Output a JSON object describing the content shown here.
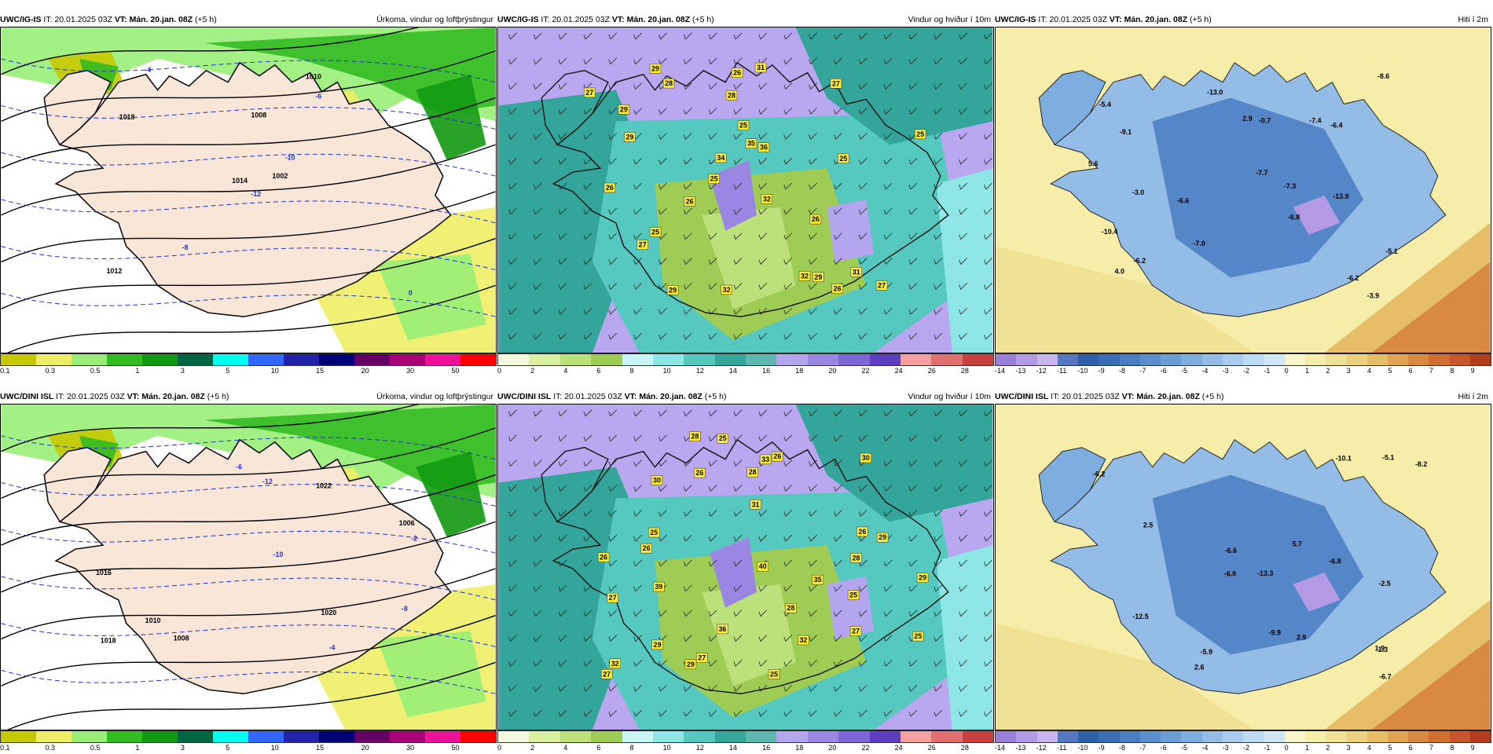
{
  "panels": [
    {
      "model": "UWC/IG-IS",
      "it_label": "IT:",
      "it": "20.01.2025 03Z",
      "vt_label": "VT:",
      "vt": "Mán. 20.jan. 08Z",
      "lead": "(+5 h)",
      "field": "Úrkoma, vindur og loftþrýstingur",
      "kind": "precip",
      "legend": [
        "0.1",
        "0.3",
        "0.5",
        "1",
        "3",
        "5",
        "10",
        "15",
        "20",
        "30",
        "50"
      ],
      "legend_colors": [
        "#c6c900",
        "#eeee66",
        "#99ee77",
        "#33bb22",
        "#119911",
        "#006644",
        "#00ffee",
        "#3366ff",
        "#2222aa",
        "#000077",
        "#660066",
        "#aa0077",
        "#ee1199",
        "#ff0000"
      ],
      "labels": [
        {
          "text": "-12",
          "kind": "neg"
        },
        {
          "text": "1018",
          "kind": "iso"
        },
        {
          "text": "1014",
          "kind": "iso"
        },
        {
          "text": "1012",
          "kind": "iso"
        },
        {
          "text": "-10",
          "kind": "neg"
        },
        {
          "text": "-8",
          "kind": "neg"
        },
        {
          "text": "1010",
          "kind": "iso"
        },
        {
          "text": "1008",
          "kind": "iso"
        },
        {
          "text": "-6",
          "kind": "neg"
        },
        {
          "text": "1002",
          "kind": "iso"
        },
        {
          "text": "-4",
          "kind": "neg"
        },
        {
          "text": "0",
          "kind": "neg"
        }
      ]
    },
    {
      "model": "UWC/IG-IS",
      "it_label": "IT:",
      "it": "20.01.2025 03Z",
      "vt_label": "VT:",
      "vt": "Mán. 20.jan. 08Z",
      "lead": "(+5 h)",
      "field": "Vindur og hviður í 10m",
      "kind": "wind",
      "legend": [
        "0",
        "2",
        "4",
        "6",
        "8",
        "10",
        "12",
        "14",
        "16",
        "18",
        "20",
        "22",
        "24",
        "26",
        "28"
      ],
      "legend_colors": [
        "#f4f9e0",
        "#d9f0a0",
        "#bce07a",
        "#9fcc55",
        "#c8f5f5",
        "#8ee6e6",
        "#55c8c0",
        "#33a59a",
        "#5fb8b0",
        "#b3a6ef",
        "#9a87e3",
        "#7f66d8",
        "#5c3fc0",
        "#f4a0a0",
        "#e07070",
        "#c84040"
      ],
      "labels": [
        {
          "text": "27"
        },
        {
          "text": "32"
        },
        {
          "text": "32"
        },
        {
          "text": "26"
        },
        {
          "text": "28"
        },
        {
          "text": "29"
        },
        {
          "text": "32"
        },
        {
          "text": "34"
        },
        {
          "text": "25"
        },
        {
          "text": "36"
        },
        {
          "text": "28"
        },
        {
          "text": "27"
        },
        {
          "text": "27"
        },
        {
          "text": "26"
        },
        {
          "text": "31"
        },
        {
          "text": "25"
        },
        {
          "text": "25"
        },
        {
          "text": "35"
        },
        {
          "text": "31"
        },
        {
          "text": "29"
        },
        {
          "text": "29"
        },
        {
          "text": "26"
        },
        {
          "text": "27"
        },
        {
          "text": "26"
        },
        {
          "text": "29"
        },
        {
          "text": "26"
        },
        {
          "text": "29"
        },
        {
          "text": "25"
        },
        {
          "text": "25"
        }
      ]
    },
    {
      "model": "UWC/IG-IS",
      "it_label": "IT:",
      "it": "20.01.2025 03Z",
      "vt_label": "VT:",
      "vt": "Mán. 20.jan. 08Z",
      "lead": "(+5 h)",
      "field": "Hiti í 2m",
      "kind": "temp",
      "legend": [
        "-14",
        "-13",
        "-12",
        "-11",
        "-10",
        "-9",
        "-8",
        "-7",
        "-6",
        "-5",
        "-4",
        "-3",
        "-2",
        "-1",
        "0",
        "1",
        "2",
        "3",
        "4",
        "5",
        "6",
        "7",
        "8",
        "9"
      ],
      "legend_colors": [
        "#9a7fd8",
        "#b49ae4",
        "#c7b5ec",
        "#5577c0",
        "#2e5fa8",
        "#3a6db5",
        "#4a7ec2",
        "#5a8ecd",
        "#6c9ed6",
        "#7eaedf",
        "#93bde6",
        "#a8cced",
        "#bcdaf2",
        "#d0e6f5",
        "#f8f6c8",
        "#f5eeaa",
        "#f0e295",
        "#ecd27f",
        "#e6be68",
        "#e0a452",
        "#d98a40",
        "#d16f33",
        "#c8562a",
        "#b43c1e"
      ],
      "labels": [
        {
          "text": "-3.9"
        },
        {
          "text": "-3.0"
        },
        {
          "text": "-6.8"
        },
        {
          "text": "-5.4"
        },
        {
          "text": "-5.1"
        },
        {
          "text": "-9.1"
        },
        {
          "text": "-6.2"
        },
        {
          "text": "-6.6"
        },
        {
          "text": "-6.4"
        },
        {
          "text": "2.9"
        },
        {
          "text": "-7.4"
        },
        {
          "text": "-6.2"
        },
        {
          "text": "-7.0"
        },
        {
          "text": "-13.0"
        },
        {
          "text": "-7.3"
        },
        {
          "text": "-10.4"
        },
        {
          "text": "-13.9"
        },
        {
          "text": "-7.7"
        },
        {
          "text": "5.6"
        },
        {
          "text": "4.0"
        },
        {
          "text": "-8.6"
        },
        {
          "text": "-0.7"
        }
      ]
    },
    {
      "model": "UWC/DINI ISL",
      "it_label": "IT:",
      "it": "20.01.2025 03Z",
      "vt_label": "VT:",
      "vt": "Mán. 20.jan. 08Z",
      "lead": "(+5 h)",
      "field": "Úrkoma, vindur og loftþrýstingur",
      "kind": "precip",
      "legend": [
        "0.1",
        "0.3",
        "0.5",
        "1",
        "3",
        "5",
        "10",
        "15",
        "20",
        "30",
        "50"
      ],
      "legend_colors": [
        "#c6c900",
        "#eeee66",
        "#99ee77",
        "#33bb22",
        "#119911",
        "#006644",
        "#00ffee",
        "#3366ff",
        "#2222aa",
        "#000077",
        "#660066",
        "#aa0077",
        "#ee1199",
        "#ff0000"
      ],
      "labels": [
        {
          "text": "-12",
          "kind": "neg"
        },
        {
          "text": "1022",
          "kind": "iso"
        },
        {
          "text": "1020",
          "kind": "iso"
        },
        {
          "text": "1018",
          "kind": "iso"
        },
        {
          "text": "-10",
          "kind": "neg"
        },
        {
          "text": "1016",
          "kind": "iso"
        },
        {
          "text": "-8",
          "kind": "neg"
        },
        {
          "text": "1010",
          "kind": "iso"
        },
        {
          "text": "1008",
          "kind": "iso"
        },
        {
          "text": "-6",
          "kind": "neg"
        },
        {
          "text": "1006",
          "kind": "iso"
        },
        {
          "text": "-4",
          "kind": "neg"
        },
        {
          "text": "-2",
          "kind": "neg"
        }
      ]
    },
    {
      "model": "UWC/DINI ISL",
      "it_label": "IT:",
      "it": "20.01.2025 03Z",
      "vt_label": "VT:",
      "vt": "Mán. 20.jan. 08Z",
      "lead": "(+5 h)",
      "field": "Vindur og hviður í 10m",
      "kind": "wind",
      "legend": [
        "0",
        "2",
        "4",
        "6",
        "8",
        "10",
        "12",
        "14",
        "16",
        "18",
        "20",
        "22",
        "24",
        "26",
        "28"
      ],
      "legend_colors": [
        "#f4f9e0",
        "#d9f0a0",
        "#bce07a",
        "#9fcc55",
        "#c8f5f5",
        "#8ee6e6",
        "#55c8c0",
        "#33a59a",
        "#5fb8b0",
        "#b3a6ef",
        "#9a87e3",
        "#7f66d8",
        "#5c3fc0",
        "#f4a0a0",
        "#e07070",
        "#c84040"
      ],
      "labels": [
        {
          "text": "25"
        },
        {
          "text": "29"
        },
        {
          "text": "27"
        },
        {
          "text": "26"
        },
        {
          "text": "30"
        },
        {
          "text": "25"
        },
        {
          "text": "35"
        },
        {
          "text": "32"
        },
        {
          "text": "26"
        },
        {
          "text": "25"
        },
        {
          "text": "26"
        },
        {
          "text": "32"
        },
        {
          "text": "26"
        },
        {
          "text": "30"
        },
        {
          "text": "28"
        },
        {
          "text": "28"
        },
        {
          "text": "26"
        },
        {
          "text": "28"
        },
        {
          "text": "40"
        },
        {
          "text": "27"
        },
        {
          "text": "36"
        },
        {
          "text": "29"
        },
        {
          "text": "27"
        },
        {
          "text": "33"
        },
        {
          "text": "39"
        },
        {
          "text": "31"
        },
        {
          "text": "29"
        },
        {
          "text": "25"
        },
        {
          "text": "29"
        },
        {
          "text": "27"
        },
        {
          "text": "28"
        },
        {
          "text": "25"
        }
      ]
    },
    {
      "model": "UWC/DINI ISL",
      "it_label": "IT:",
      "it": "20.01.2025 03Z",
      "vt_label": "VT:",
      "vt": "Mán. 20.jan. 08Z",
      "lead": "(+5 h)",
      "field": "Hiti í 2m",
      "kind": "temp",
      "legend": [
        "-14",
        "-13",
        "-12",
        "-11",
        "-10",
        "-9",
        "-8",
        "-7",
        "-6",
        "-5",
        "-4",
        "-3",
        "-2",
        "-1",
        "0",
        "1",
        "2",
        "3",
        "4",
        "5",
        "6",
        "7",
        "8",
        "9"
      ],
      "legend_colors": [
        "#9a7fd8",
        "#b49ae4",
        "#c7b5ec",
        "#5577c0",
        "#2e5fa8",
        "#3a6db5",
        "#4a7ec2",
        "#5a8ecd",
        "#6c9ed6",
        "#7eaedf",
        "#93bde6",
        "#a8cced",
        "#bcdaf2",
        "#d0e6f5",
        "#f8f6c8",
        "#f5eeaa",
        "#f0e295",
        "#ecd27f",
        "#e6be68",
        "#e0a452",
        "#d98a40",
        "#d16f33",
        "#c8562a",
        "#b43c1e"
      ],
      "labels": [
        {
          "text": "-2.5"
        },
        {
          "text": "-6.8"
        },
        {
          "text": "1.3"
        },
        {
          "text": "-6.2"
        },
        {
          "text": "1.9"
        },
        {
          "text": "-5.1"
        },
        {
          "text": "-6.6"
        },
        {
          "text": "-8.2"
        },
        {
          "text": "2.6"
        },
        {
          "text": "-5.9"
        },
        {
          "text": "-6.9"
        },
        {
          "text": "-9.9"
        },
        {
          "text": "-12.5"
        },
        {
          "text": "-13.3"
        },
        {
          "text": "-6.7"
        },
        {
          "text": "2.5"
        },
        {
          "text": "5.7"
        },
        {
          "text": "2.9"
        },
        {
          "text": "-10.1"
        }
      ]
    }
  ]
}
